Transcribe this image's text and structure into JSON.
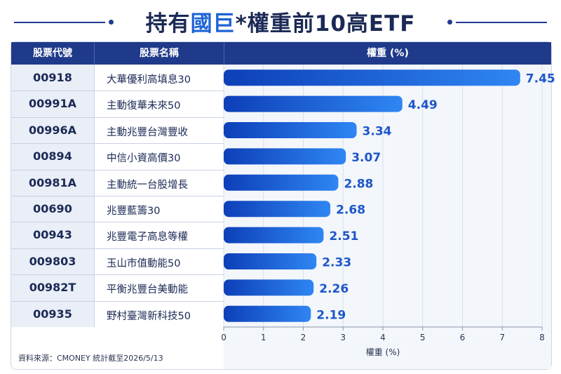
{
  "title": {
    "prefix": "持有",
    "highlight": "國巨",
    "suffix": "*權重前10高ETF"
  },
  "table": {
    "col_code": "股票代號",
    "col_name": "股票名稱",
    "col_weight": "權重 (%)"
  },
  "footnote": "資料來源：CMONEY 統計截至2026/5/13",
  "colors": {
    "header_bg": "#1f3a8a",
    "bar_start": "#0d3fb8",
    "bar_end": "#2f86f3",
    "value_label": "#1e56c8"
  },
  "chart_data": {
    "type": "bar",
    "orientation": "horizontal",
    "categories": [
      "00918",
      "00991A",
      "00996A",
      "00894",
      "00981A",
      "00690",
      "00943",
      "009803",
      "00982T",
      "00935"
    ],
    "names": [
      "大華優利高填息30",
      "主動復華未來50",
      "主動兆豐台灣豐收",
      "中信小資高價30",
      "主動統一台股增長",
      "兆豐藍籌30",
      "兆豐電子高息等權",
      "玉山市值動能50",
      "平衡兆豐台美動能",
      "野村臺灣新科技50"
    ],
    "values": [
      7.45,
      4.49,
      3.34,
      3.07,
      2.88,
      2.68,
      2.51,
      2.33,
      2.26,
      2.19
    ],
    "value_labels": [
      "7.45",
      "4.49",
      "3.34",
      "3.07",
      "2.88",
      "2.68",
      "2.51",
      "2.33",
      "2.26",
      "2.19"
    ],
    "xlabel": "權重 (%)",
    "xlim": [
      0,
      8
    ],
    "xticks": [
      "0",
      "1",
      "2",
      "3",
      "4",
      "5",
      "6",
      "7",
      "8"
    ],
    "grid": true
  }
}
